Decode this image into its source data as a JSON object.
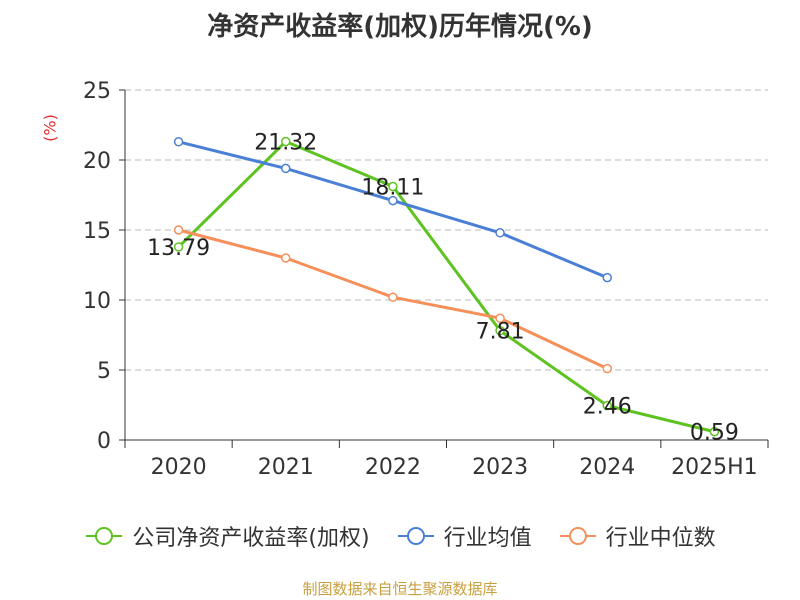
{
  "chart_data": {
    "type": "line",
    "title": "净资产收益率(加权)历年情况(%)",
    "ylabel": "(%)",
    "categories": [
      "2020",
      "2021",
      "2022",
      "2023",
      "2024",
      "2025H1"
    ],
    "yticks": [
      "0",
      "5",
      "10",
      "15",
      "20",
      "25"
    ],
    "ylim": [
      0,
      25
    ],
    "grid": true,
    "legend_position": "bottom",
    "series": [
      {
        "name": "公司净资产收益率(加权)",
        "color": "#5ec320",
        "values": [
          13.79,
          21.32,
          18.11,
          7.81,
          2.46,
          0.59
        ],
        "labels": [
          "13.79",
          "21.32",
          "18.11",
          "7.81",
          "2.46",
          "0.59"
        ]
      },
      {
        "name": "行业均值",
        "color": "#4a7fd6",
        "values": [
          21.3,
          19.4,
          17.1,
          14.8,
          11.6,
          null
        ]
      },
      {
        "name": "行业中位数",
        "color": "#f5905a",
        "values": [
          15.0,
          13.0,
          10.2,
          8.7,
          5.1,
          null
        ]
      }
    ]
  },
  "source": "制图数据来自恒生聚源数据库"
}
